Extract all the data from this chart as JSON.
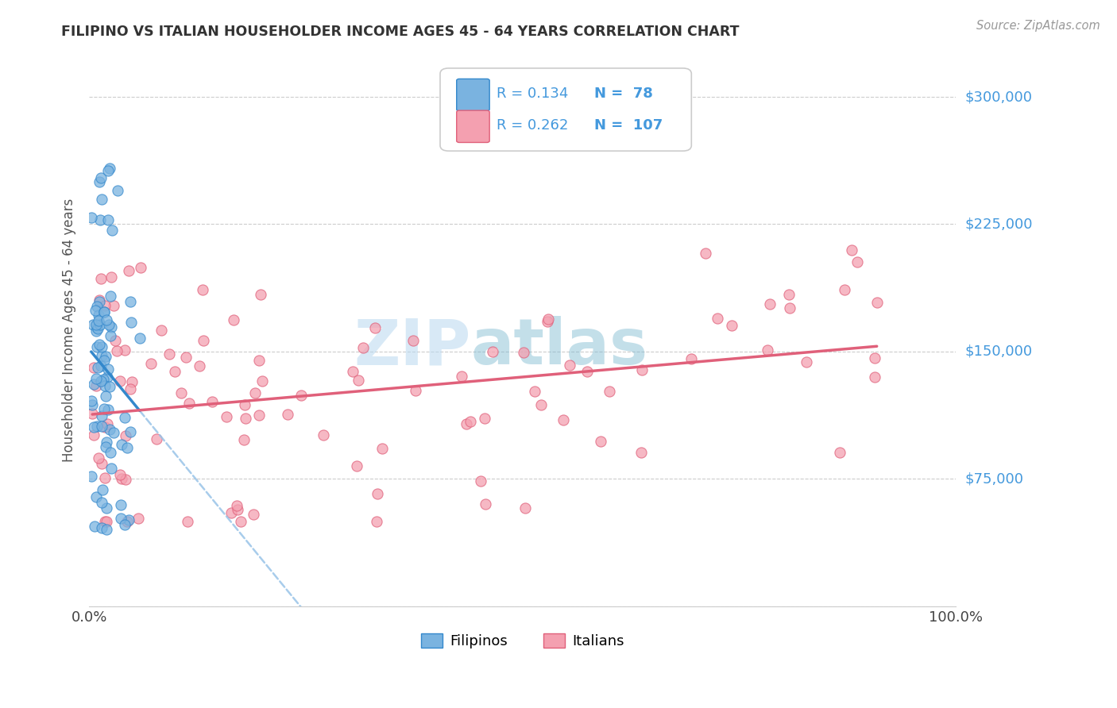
{
  "title": "FILIPINO VS ITALIAN HOUSEHOLDER INCOME AGES 45 - 64 YEARS CORRELATION CHART",
  "source": "Source: ZipAtlas.com",
  "ylabel": "Householder Income Ages 45 - 64 years",
  "xlim": [
    0,
    1.0
  ],
  "ylim": [
    0,
    325000
  ],
  "ytick_positions": [
    0,
    75000,
    150000,
    225000,
    300000
  ],
  "ytick_labels": [
    "",
    "$75,000",
    "$150,000",
    "$225,000",
    "$300,000"
  ],
  "filipino_color": "#7ab3e0",
  "italian_color": "#f4a0b0",
  "filipino_line_color": "#3388cc",
  "italian_line_color": "#e0607a",
  "dashed_line_color": "#99c4e8",
  "filipino_R": 0.134,
  "filipino_N": 78,
  "italian_R": 0.262,
  "italian_N": 107,
  "legend_label_1": "Filipinos",
  "legend_label_2": "Italians",
  "watermark_zip": "ZIP",
  "watermark_atlas": "atlas",
  "background_color": "#ffffff",
  "grid_color": "#cccccc",
  "title_color": "#333333",
  "source_color": "#999999",
  "ylabel_color": "#555555",
  "right_label_color": "#4499dd",
  "legend_text_color": "#4499dd"
}
